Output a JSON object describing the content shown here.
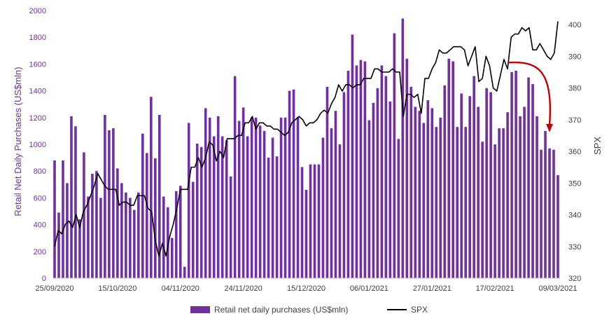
{
  "chart_data": {
    "type": "bar+line",
    "ylabel_left": "Retail Net Daily Purchases (US$mln)",
    "ylabel_right": "SPX",
    "ylim_left": [
      0,
      2000
    ],
    "ylim_right": [
      320,
      405
    ],
    "yticks_left": [
      "0",
      "200",
      "400",
      "600",
      "800",
      "1000",
      "1200",
      "1400",
      "1600",
      "1800",
      "2000"
    ],
    "yticks_right": [
      "320",
      "330",
      "340",
      "350",
      "360",
      "370",
      "380",
      "390",
      "400"
    ],
    "xticks": [
      "25/09/2020",
      "15/10/2020",
      "04/11/2020",
      "24/11/2020",
      "15/12/2020",
      "06/01/2021",
      "27/01/2021",
      "17/02/2021",
      "09/03/2021"
    ],
    "grid": false,
    "legend_position": "bottom",
    "colors": {
      "bars": "#7030A0",
      "line": "#000000",
      "arrow": "#C00000"
    },
    "series": [
      {
        "name": "Retail net daily purchases (US$mln)",
        "kind": "bar",
        "values": [
          880,
          490,
          880,
          710,
          1210,
          1135,
          440,
          940,
          610,
          780,
          800,
          600,
          1220,
          1105,
          1120,
          820,
          710,
          640,
          600,
          510,
          640,
          1080,
          935,
          1355,
          895,
          1220,
          610,
          530,
          300,
          650,
          690,
          85,
          1160,
          720,
          1005,
          980,
          1270,
          1200,
          1060,
          1210,
          1060,
          1030,
          760,
          1510,
          1175,
          1275,
          1060,
          1200,
          1200,
          1140,
          1100,
          900,
          1050,
          910,
          1200,
          1200,
          1400,
          1410,
          1205,
          830,
          660,
          850,
          850,
          850,
          1050,
          1430,
          1120,
          1250,
          1000,
          1390,
          1550,
          1820,
          1590,
          1630,
          1620,
          1180,
          1310,
          1420,
          1590,
          1510,
          1320,
          1830,
          1040,
          1940,
          1640,
          1430,
          1280,
          1250,
          1160,
          1330,
          1270,
          1130,
          1200,
          1440,
          1640,
          1620,
          1130,
          1380,
          1130,
          1360,
          1510,
          1280,
          1020,
          1420,
          1390,
          1000,
          1120,
          1120,
          1240,
          1540,
          1550,
          1210,
          1280,
          1500,
          1450,
          1210,
          960,
          1100,
          970,
          960,
          770
        ]
      },
      {
        "name": "SPX",
        "kind": "line",
        "values": [
          330,
          335,
          334,
          337,
          338,
          336,
          340,
          336,
          341,
          343,
          346,
          349,
          353,
          351,
          349,
          348,
          348,
          348,
          343,
          344,
          344,
          343,
          343,
          346,
          346,
          346,
          342,
          341,
          332,
          327,
          331,
          327,
          333,
          337,
          342,
          348,
          348,
          348,
          355,
          355,
          358,
          355,
          358,
          363,
          362,
          357,
          360,
          358,
          364,
          364,
          364,
          365,
          365,
          369,
          369,
          371,
          367,
          369,
          369,
          368,
          368,
          367,
          367,
          366,
          365,
          366,
          369,
          370,
          371,
          370,
          368,
          369,
          369,
          370,
          372,
          373,
          372,
          375,
          377,
          381,
          379,
          381,
          381,
          380,
          381,
          381,
          383,
          383,
          383,
          386,
          386,
          385,
          385,
          385,
          386,
          385,
          385,
          371,
          378,
          378,
          377,
          378,
          372,
          383,
          383,
          386,
          388,
          392,
          391,
          391,
          392,
          393,
          393,
          393,
          392,
          387,
          390,
          393,
          382,
          383,
          390,
          387,
          380,
          379,
          384,
          389,
          386,
          396,
          397,
          397,
          399,
          398,
          399,
          392,
          392,
          394,
          392,
          390,
          389,
          391,
          401
        ],
        "line_x_range": [
          0,
          120
        ]
      }
    ],
    "annotations": [
      {
        "kind": "arrow",
        "from_bar": [
          108,
          388
        ],
        "to_bar": [
          118,
          366
        ]
      }
    ]
  },
  "legend": {
    "bars_label": "Retail net daily purchases (US$mln)",
    "line_label": "SPX"
  }
}
